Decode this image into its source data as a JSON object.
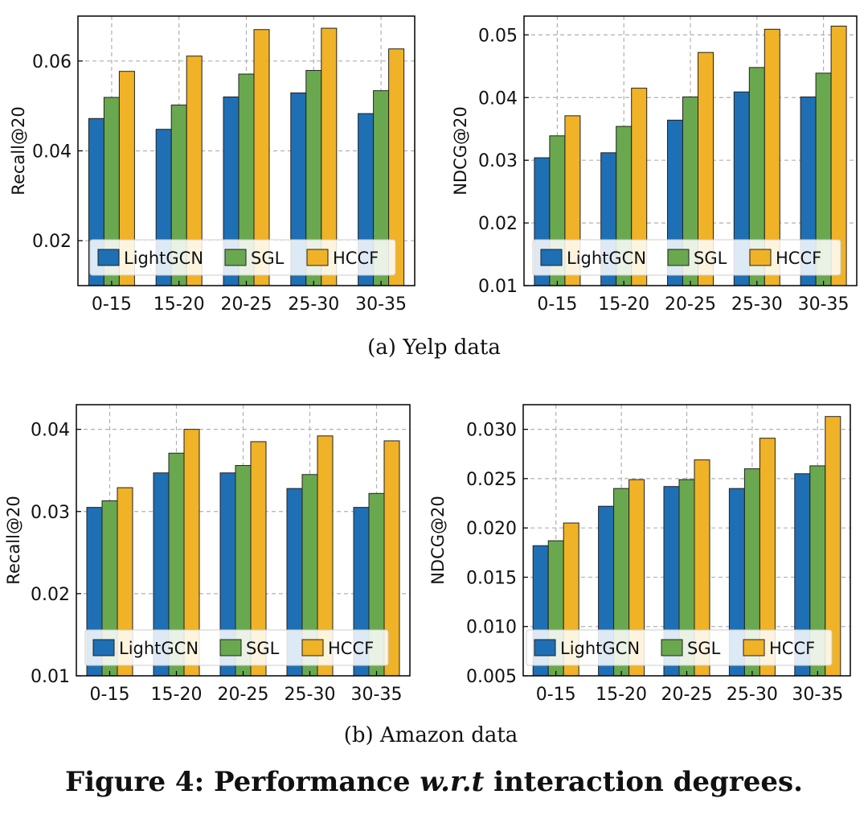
{
  "colors": {
    "LightGCN": "#1f6fb4",
    "SGL": "#6aa84f",
    "HCCF": "#f0b226",
    "edge": "#222222",
    "grid": "#b0b0b0"
  },
  "captions": {
    "a": "(a)  Yelp data",
    "b": "(b)  Amazon data",
    "figure_prefix": "Figure 4: Performance ",
    "figure_italic": "w.r.t",
    "figure_suffix": " interaction degrees."
  },
  "chart_data": [
    {
      "type": "bar",
      "panel": "yelp-recall",
      "categories": [
        "0-15",
        "15-20",
        "20-25",
        "25-30",
        "30-35"
      ],
      "ylabel": "Recall@20",
      "ylim": [
        0.01,
        0.07
      ],
      "yticks": [
        "0.02",
        "0.04",
        "0.06"
      ],
      "grid": true,
      "legend_position": "bottom-center",
      "series": [
        {
          "name": "LightGCN",
          "values": [
            0.0472,
            0.0448,
            0.052,
            0.0529,
            0.0483
          ]
        },
        {
          "name": "SGL",
          "values": [
            0.0519,
            0.0502,
            0.0571,
            0.0579,
            0.0534
          ]
        },
        {
          "name": "HCCF",
          "values": [
            0.0577,
            0.0611,
            0.067,
            0.0673,
            0.0627
          ]
        }
      ]
    },
    {
      "type": "bar",
      "panel": "yelp-ndcg",
      "categories": [
        "0-15",
        "15-20",
        "20-25",
        "25-30",
        "30-35"
      ],
      "ylabel": "NDCG@20",
      "ylim": [
        0.01,
        0.053
      ],
      "yticks": [
        "0.01",
        "0.02",
        "0.03",
        "0.04",
        "0.05"
      ],
      "grid": true,
      "legend_position": "bottom-center",
      "series": [
        {
          "name": "LightGCN",
          "values": [
            0.0304,
            0.0312,
            0.0364,
            0.0409,
            0.0401
          ]
        },
        {
          "name": "SGL",
          "values": [
            0.0339,
            0.0354,
            0.0401,
            0.0448,
            0.0439
          ]
        },
        {
          "name": "HCCF",
          "values": [
            0.0371,
            0.0415,
            0.0472,
            0.0509,
            0.0514
          ]
        }
      ]
    },
    {
      "type": "bar",
      "panel": "amazon-recall",
      "categories": [
        "0-15",
        "15-20",
        "20-25",
        "25-30",
        "30-35"
      ],
      "ylabel": "Recall@20",
      "ylim": [
        0.01,
        0.043
      ],
      "yticks": [
        "0.01",
        "0.02",
        "0.03",
        "0.04"
      ],
      "grid": true,
      "legend_position": "bottom-center",
      "series": [
        {
          "name": "LightGCN",
          "values": [
            0.0305,
            0.0347,
            0.0347,
            0.0328,
            0.0305
          ]
        },
        {
          "name": "SGL",
          "values": [
            0.0313,
            0.0371,
            0.0356,
            0.0345,
            0.0322
          ]
        },
        {
          "name": "HCCF",
          "values": [
            0.0329,
            0.04,
            0.0385,
            0.0392,
            0.0386
          ]
        }
      ]
    },
    {
      "type": "bar",
      "panel": "amazon-ndcg",
      "categories": [
        "0-15",
        "15-20",
        "20-25",
        "25-30",
        "30-35"
      ],
      "ylabel": "NDCG@20",
      "ylim": [
        0.005,
        0.0325
      ],
      "yticks": [
        "0.005",
        "0.010",
        "0.015",
        "0.020",
        "0.025",
        "0.030"
      ],
      "grid": true,
      "legend_position": "bottom-center",
      "series": [
        {
          "name": "LightGCN",
          "values": [
            0.0182,
            0.0222,
            0.0242,
            0.024,
            0.0255
          ]
        },
        {
          "name": "SGL",
          "values": [
            0.0187,
            0.024,
            0.0249,
            0.026,
            0.0263
          ]
        },
        {
          "name": "HCCF",
          "values": [
            0.0205,
            0.0249,
            0.0269,
            0.0291,
            0.0313
          ]
        }
      ]
    }
  ]
}
